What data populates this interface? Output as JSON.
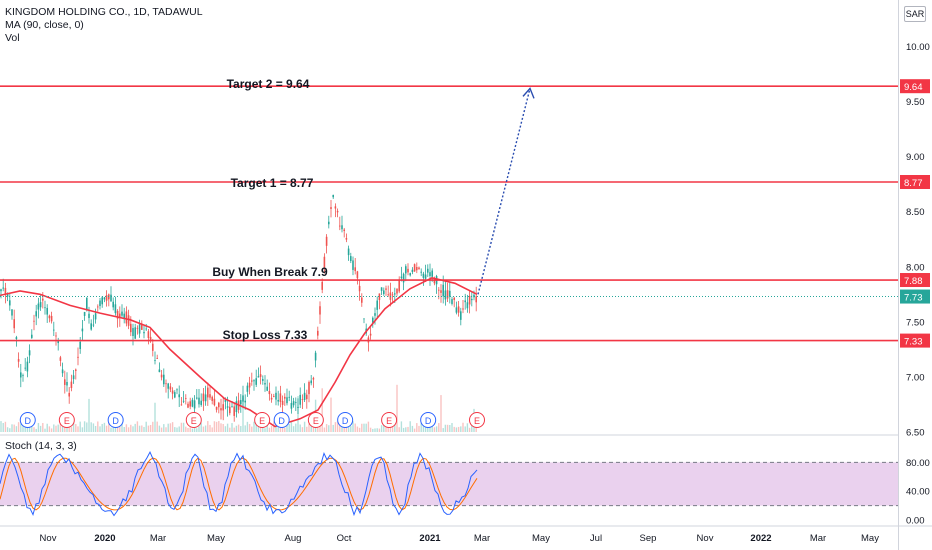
{
  "header": {
    "title": "KINGDOM HOLDING CO., 1D, TADAWUL",
    "indicator_ma": "MA (90, close, 0)",
    "indicator_vol": "Vol",
    "currency": "SAR"
  },
  "stoch": {
    "label": "Stoch (14, 3, 3)",
    "ticks": [
      "80.00",
      "40.00",
      "0.00"
    ],
    "upper_band": 80,
    "lower_band": 20
  },
  "annotations": {
    "target2": "Target 2 = 9.64",
    "target1": "Target 1 = 8.77",
    "buy": "Buy When Break 7.9",
    "stop": "Stop Loss 7.33"
  },
  "chart_data": {
    "type": "candlestick",
    "title": "KINGDOM HOLDING CO., 1D, TADAWUL",
    "ylim": [
      6.5,
      10.35
    ],
    "y_ticks": [
      "10.00",
      "9.50",
      "9.00",
      "8.50",
      "8.00",
      "7.50",
      "7.00",
      "6.50"
    ],
    "x_ticks": [
      "Nov",
      "2020",
      "Mar",
      "May",
      "Aug",
      "Oct",
      "2021",
      "Mar",
      "May",
      "Jul",
      "Sep",
      "Nov",
      "2022",
      "Mar",
      "May"
    ],
    "levels": [
      {
        "name": "target2",
        "value": 9.64,
        "label": "9.64",
        "color": "#f23645"
      },
      {
        "name": "target1",
        "value": 8.77,
        "label": "8.77",
        "color": "#f23645"
      },
      {
        "name": "buy",
        "value": 7.88,
        "label": "7.88",
        "color": "#f23645"
      },
      {
        "name": "stop",
        "value": 7.33,
        "label": "7.33",
        "color": "#f23645"
      }
    ],
    "last_price": {
      "value": 7.73,
      "label": "7.73",
      "color": "#26a69a"
    },
    "ma_color": "#f23645",
    "projection_color": "#2a4db0",
    "stoch_fill_color": "#e1bee7",
    "event_markers": [
      {
        "type": "D",
        "x_index": 2
      },
      {
        "type": "E",
        "x_index": 10
      },
      {
        "type": "D",
        "x_index": 20
      },
      {
        "type": "E",
        "x_index": 36
      },
      {
        "type": "E",
        "x_index": 50
      },
      {
        "type": "D",
        "x_index": 54
      },
      {
        "type": "E",
        "x_index": 61
      },
      {
        "type": "D",
        "x_index": 67
      },
      {
        "type": "E",
        "x_index": 76
      },
      {
        "type": "D",
        "x_index": 84
      },
      {
        "type": "E",
        "x_index": 94
      }
    ]
  }
}
